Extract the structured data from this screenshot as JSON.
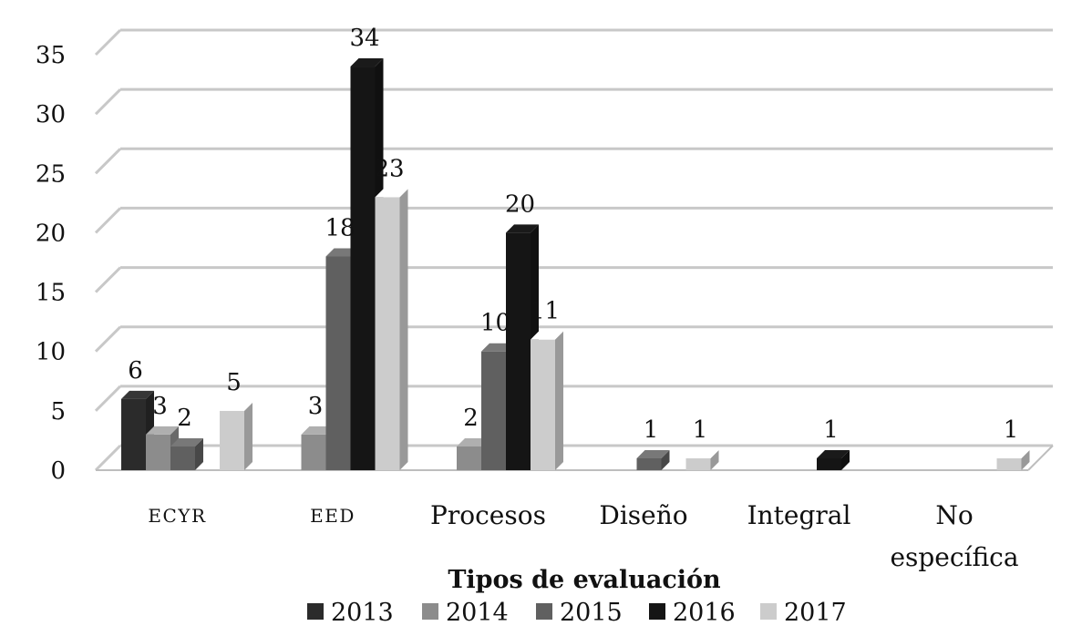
{
  "chart_data": {
    "type": "bar",
    "title": "",
    "xlabel": "Tipos de evaluación",
    "ylabel": "",
    "ylim": [
      0,
      35
    ],
    "yticks": [
      "0",
      "5",
      "10",
      "15",
      "20",
      "25",
      "30",
      "35"
    ],
    "grid": true,
    "legend_position": "bottom",
    "categories": [
      "ECYR",
      "EED",
      "Procesos",
      "Diseño",
      "Integral",
      "No específica"
    ],
    "series": [
      {
        "name": "2013",
        "color": "#2b2b2b",
        "values": [
          6,
          0,
          0,
          0,
          0,
          0
        ],
        "labels": [
          "6",
          "",
          "",
          "",
          "",
          ""
        ]
      },
      {
        "name": "2014",
        "color": "#8c8c8c",
        "values": [
          3,
          3,
          2,
          0,
          0,
          0
        ],
        "labels": [
          "3",
          "3",
          "2",
          "",
          "",
          ""
        ]
      },
      {
        "name": "2015",
        "color": "#606060",
        "values": [
          2,
          18,
          10,
          1,
          0,
          0
        ],
        "labels": [
          "2",
          "18",
          "10",
          "1",
          "",
          ""
        ]
      },
      {
        "name": "2016",
        "color": "#151515",
        "values": [
          0,
          34,
          20,
          0,
          1,
          0
        ],
        "labels": [
          "",
          "34",
          "20",
          "",
          "1",
          ""
        ]
      },
      {
        "name": "2017",
        "color": "#cccccc",
        "values": [
          5,
          23,
          11,
          1,
          0,
          1
        ],
        "labels": [
          "5",
          "23",
          "11",
          "1",
          "",
          "1"
        ]
      }
    ]
  }
}
